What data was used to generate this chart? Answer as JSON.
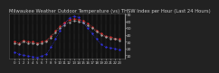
{
  "title": "Milwaukee Weather Outdoor Temperature (vs) THSW Index per Hour (Last 24 Hours)",
  "title_fontsize": 3.8,
  "background_color": "#222222",
  "plot_bg_color": "#111111",
  "hours": [
    0,
    1,
    2,
    3,
    4,
    5,
    6,
    7,
    8,
    9,
    10,
    11,
    12,
    13,
    14,
    15,
    16,
    17,
    18,
    19,
    20,
    21,
    22,
    23
  ],
  "temp_red": [
    30,
    28,
    32,
    30,
    30,
    28,
    30,
    32,
    38,
    46,
    53,
    58,
    62,
    64,
    63,
    61,
    57,
    52,
    47,
    42,
    38,
    37,
    35,
    34
  ],
  "thsw_blue": [
    15,
    12,
    10,
    9,
    8,
    7,
    9,
    12,
    22,
    34,
    47,
    57,
    65,
    68,
    66,
    58,
    50,
    42,
    34,
    26,
    22,
    21,
    20,
    18
  ],
  "temp_black": [
    28,
    26,
    30,
    28,
    28,
    26,
    28,
    30,
    36,
    44,
    50,
    55,
    59,
    61,
    60,
    58,
    54,
    50,
    45,
    40,
    37,
    35,
    34,
    32
  ],
  "ylim": [
    5,
    72
  ],
  "yticks": [
    10,
    20,
    30,
    40,
    50,
    60,
    70
  ],
  "ytick_labels": [
    "10",
    "20",
    "30",
    "40",
    "50",
    "60",
    "70"
  ],
  "ytick_fontsize": 3.2,
  "xtick_fontsize": 2.8,
  "line_red": "#ee3333",
  "line_blue": "#3333ee",
  "line_black": "#aaaaaa",
  "grid_color": "#888888",
  "grid_style": ":",
  "linewidth": 0.5,
  "markersize": 1.2,
  "text_color": "#cccccc"
}
